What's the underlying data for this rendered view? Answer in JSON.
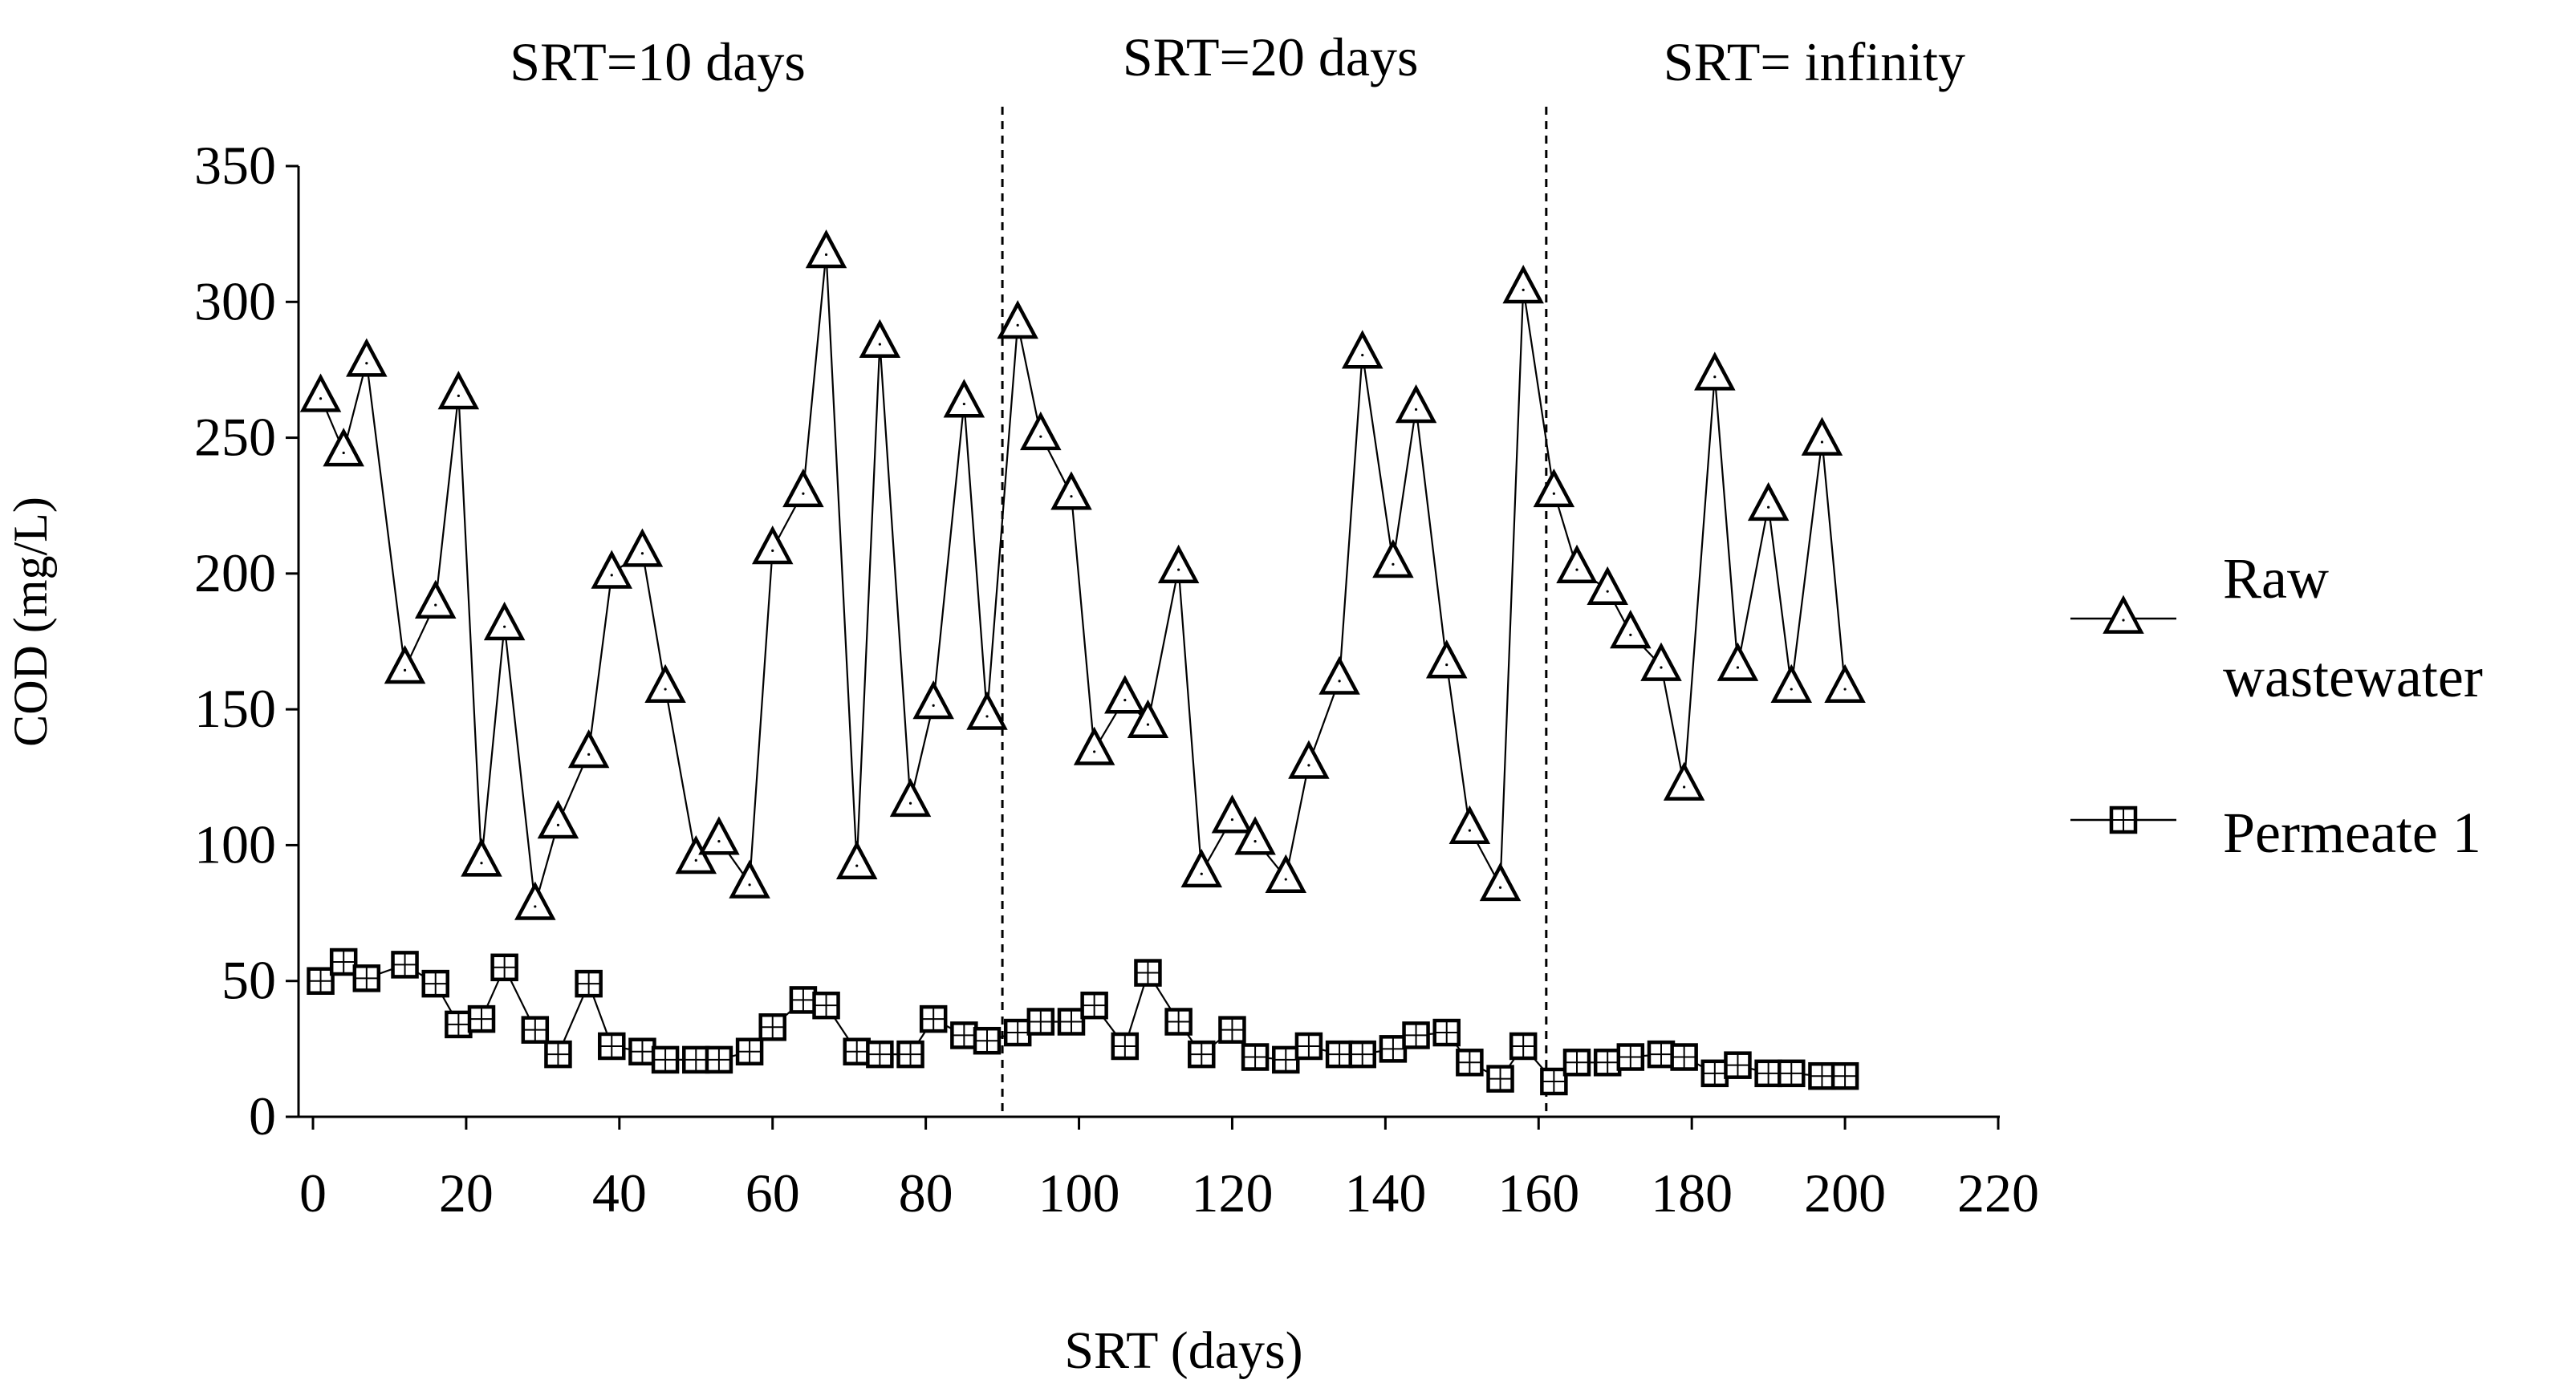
{
  "chart_data": {
    "type": "line",
    "title": "",
    "xlabel": "SRT (days)",
    "ylabel": "COD (mg/L)",
    "xlim": [
      0,
      220
    ],
    "ylim": [
      0,
      350
    ],
    "xticks": [
      0,
      20,
      40,
      60,
      80,
      100,
      120,
      140,
      160,
      180,
      200,
      220
    ],
    "yticks": [
      0,
      50,
      100,
      150,
      200,
      250,
      300,
      350
    ],
    "grid": false,
    "legend_position": "right",
    "period_dividers": [
      90,
      161
    ],
    "period_labels": [
      {
        "text": "SRT=10 days",
        "x": 45
      },
      {
        "text": "SRT=20 days",
        "x": 125
      },
      {
        "text": "SRT= infinity",
        "x": 196
      }
    ],
    "series": [
      {
        "name": "Raw wastewater",
        "legend_lines": [
          "Raw",
          "wastewater"
        ],
        "marker": "triangle",
        "x": [
          1,
          4,
          7,
          12,
          16,
          19,
          22,
          25,
          29,
          32,
          36,
          39,
          43,
          46,
          50,
          53,
          57,
          60,
          64,
          67,
          71,
          74,
          78,
          81,
          85,
          88,
          92,
          95,
          99,
          102,
          106,
          109,
          113,
          116,
          120,
          123,
          127,
          130,
          134,
          137,
          141,
          144,
          148,
          151,
          155,
          158,
          162,
          165,
          169,
          172,
          176,
          179,
          183,
          186,
          190,
          193,
          197,
          200
        ],
        "values": [
          265,
          245,
          278,
          165,
          189,
          266,
          94,
          181,
          78,
          108,
          134,
          200,
          208,
          158,
          95,
          102,
          86,
          209,
          230,
          318,
          93,
          285,
          116,
          152,
          263,
          148,
          292,
          251,
          229,
          135,
          154,
          145,
          202,
          90,
          110,
          102,
          88,
          130,
          161,
          281,
          204,
          261,
          167,
          106,
          85,
          305,
          230,
          202,
          194,
          178,
          166,
          122,
          273,
          166,
          225,
          158,
          249,
          158
        ]
      },
      {
        "name": "Permeate 1",
        "legend_lines": [
          "Permeate 1"
        ],
        "marker": "square",
        "x": [
          1,
          4,
          7,
          12,
          16,
          19,
          22,
          25,
          29,
          32,
          36,
          39,
          43,
          46,
          50,
          53,
          57,
          60,
          64,
          67,
          71,
          74,
          78,
          81,
          85,
          88,
          92,
          95,
          99,
          102,
          106,
          109,
          113,
          116,
          120,
          123,
          127,
          130,
          134,
          137,
          141,
          144,
          148,
          151,
          155,
          158,
          162,
          165,
          169,
          172,
          176,
          179,
          183,
          186,
          190,
          193,
          197,
          200
        ],
        "values": [
          50,
          57,
          51,
          56,
          49,
          34,
          36,
          55,
          32,
          23,
          49,
          26,
          24,
          21,
          21,
          21,
          24,
          33,
          43,
          41,
          24,
          23,
          23,
          36,
          30,
          28,
          31,
          35,
          35,
          41,
          26,
          53,
          35,
          23,
          32,
          22,
          21,
          26,
          23,
          23,
          25,
          30,
          31,
          20,
          14,
          26,
          13,
          20,
          20,
          22,
          23,
          22,
          16,
          19,
          16,
          16,
          15,
          15
        ]
      }
    ]
  }
}
